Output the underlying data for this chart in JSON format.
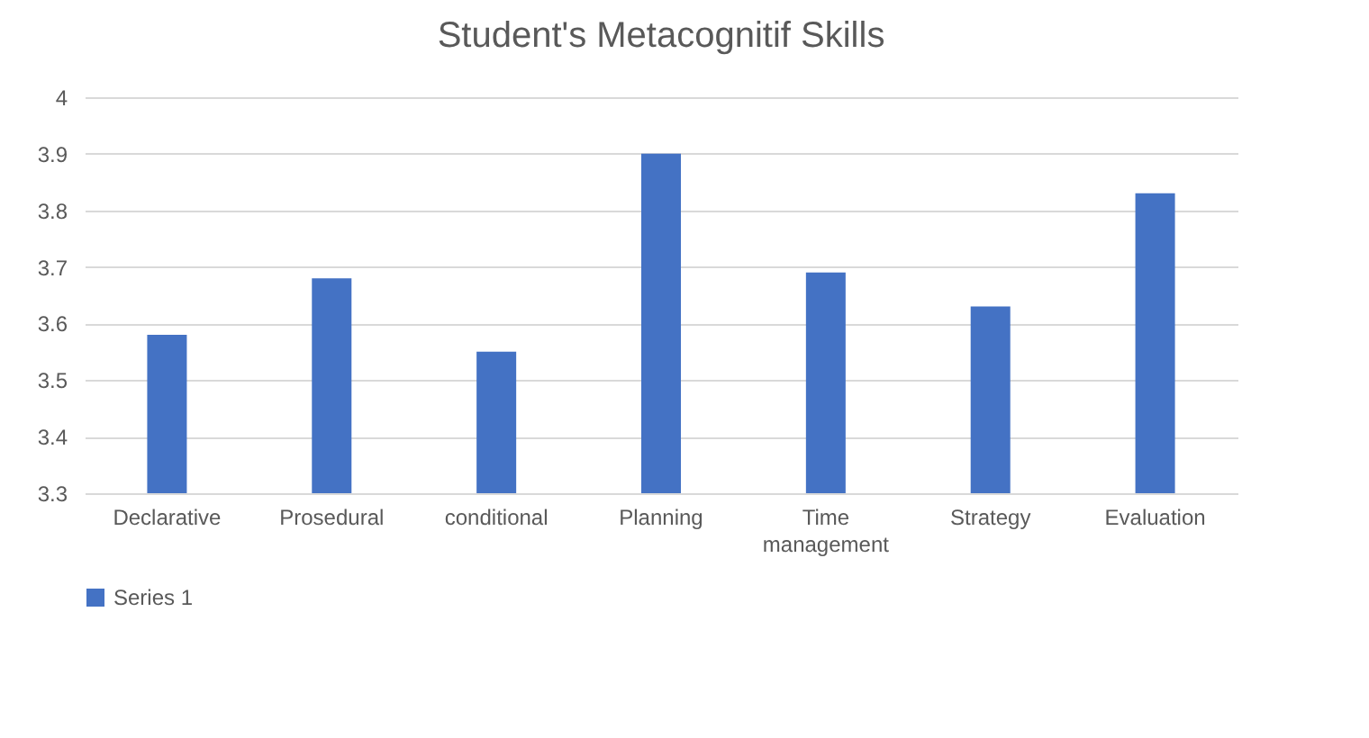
{
  "chart_data": {
    "type": "bar",
    "title": "Student's Metacognitif Skills",
    "categories": [
      "Declarative",
      "Prosedural",
      "conditional",
      "Planning",
      "Time management",
      "Strategy",
      "Evaluation"
    ],
    "series": [
      {
        "name": "Series 1",
        "color": "#4472c4",
        "values": [
          3.58,
          3.68,
          3.55,
          3.9,
          3.69,
          3.63,
          3.83
        ]
      }
    ],
    "ylim": [
      3.3,
      4
    ],
    "yticks": [
      3.3,
      3.4,
      3.5,
      3.6,
      3.7,
      3.8,
      3.9,
      4
    ],
    "grid": "y",
    "legend": "bottom"
  }
}
